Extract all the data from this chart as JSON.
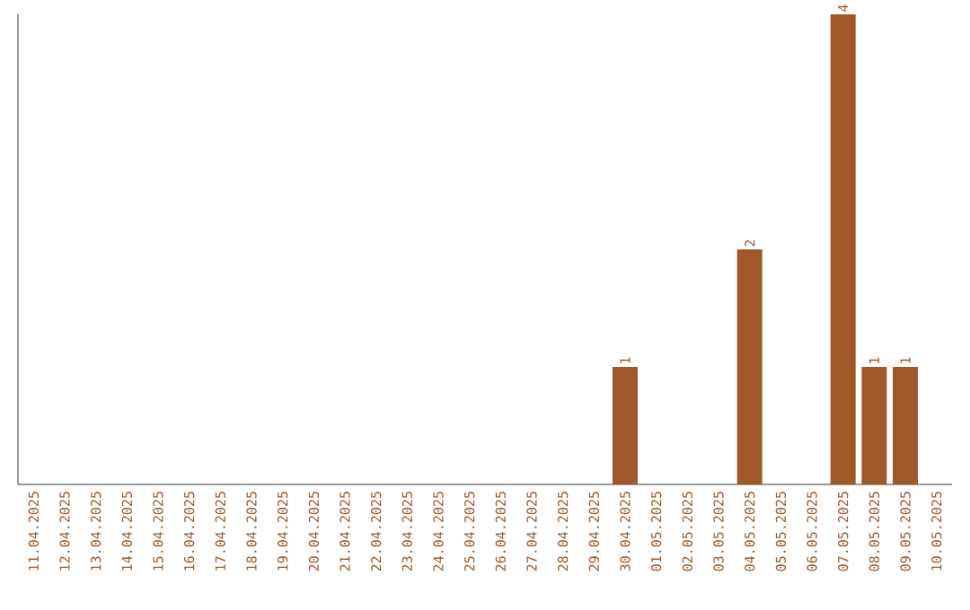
{
  "chart_data": {
    "type": "bar",
    "categories": [
      "11.04.2025",
      "12.04.2025",
      "13.04.2025",
      "14.04.2025",
      "15.04.2025",
      "16.04.2025",
      "17.04.2025",
      "18.04.2025",
      "19.04.2025",
      "20.04.2025",
      "21.04.2025",
      "22.04.2025",
      "23.04.2025",
      "24.04.2025",
      "25.04.2025",
      "26.04.2025",
      "27.04.2025",
      "28.04.2025",
      "29.04.2025",
      "30.04.2025",
      "01.05.2025",
      "02.05.2025",
      "03.05.2025",
      "04.05.2025",
      "05.05.2025",
      "06.05.2025",
      "07.05.2025",
      "08.05.2025",
      "09.05.2025",
      "10.05.2025"
    ],
    "values": [
      null,
      null,
      null,
      null,
      null,
      null,
      null,
      null,
      null,
      null,
      null,
      null,
      null,
      null,
      null,
      null,
      null,
      null,
      null,
      1,
      null,
      null,
      null,
      2,
      null,
      null,
      4,
      1,
      1,
      null
    ],
    "data_labels": true,
    "color": "#a0572a",
    "tick_labels": "x"
  }
}
